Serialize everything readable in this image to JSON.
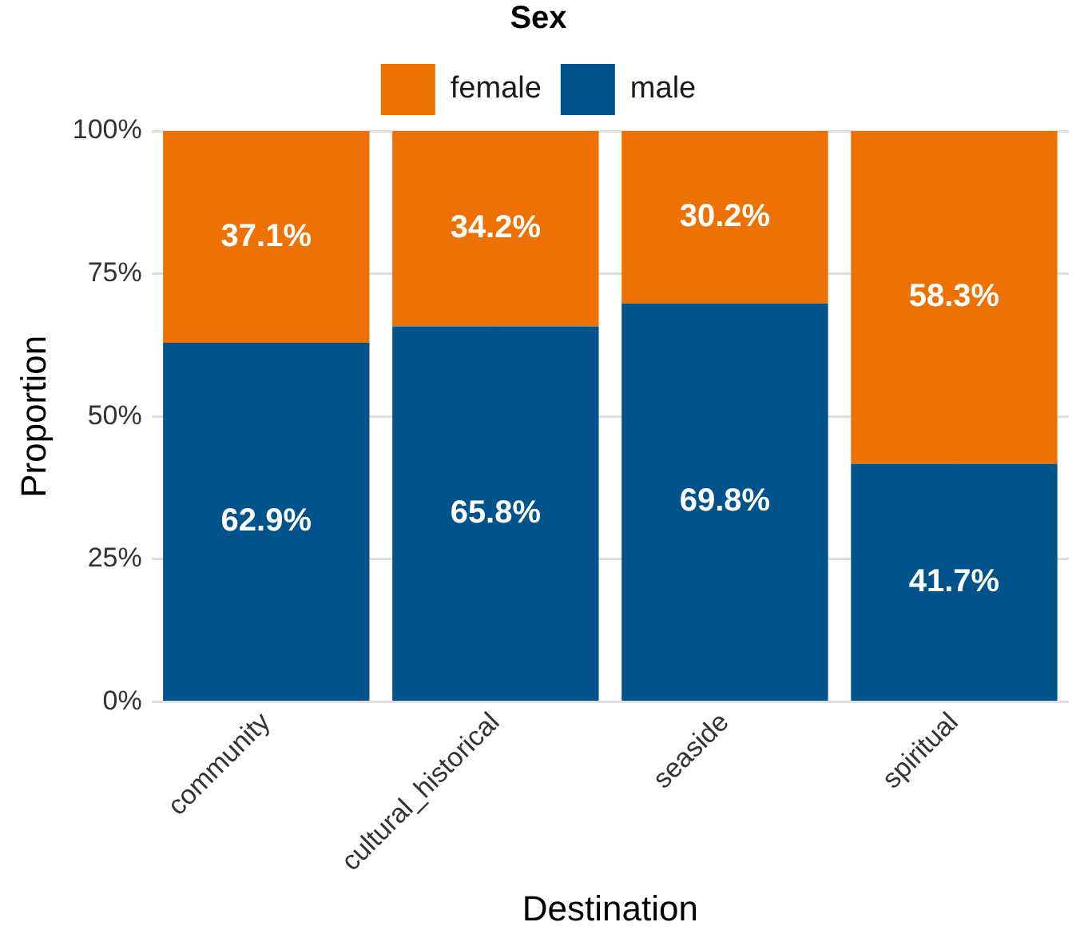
{
  "chart_data": {
    "type": "bar",
    "stacked": true,
    "xlabel": "Destination",
    "ylabel": "Proportion",
    "legend_title": "Sex",
    "legend": "top",
    "grid": true,
    "categories": [
      "community",
      "cultural_historical",
      "seaside",
      "spiritual"
    ],
    "series": [
      {
        "name": "male",
        "color": "#00548b",
        "values": [
          62.9,
          65.8,
          69.8,
          41.7
        ],
        "value_labels": [
          "62.9%",
          "65.8%",
          "69.8%",
          "41.7%"
        ]
      },
      {
        "name": "female",
        "color": "#ee7203",
        "values": [
          37.1,
          34.2,
          30.2,
          58.3
        ],
        "value_labels": [
          "37.1%",
          "34.2%",
          "30.2%",
          "58.3%"
        ]
      }
    ],
    "ylim": [
      0,
      100
    ],
    "yticks": [
      {
        "value": 0,
        "label": "0%"
      },
      {
        "value": 25,
        "label": "25%"
      },
      {
        "value": 50,
        "label": "50%"
      },
      {
        "value": 75,
        "label": "75%"
      },
      {
        "value": 100,
        "label": "100%"
      }
    ]
  }
}
